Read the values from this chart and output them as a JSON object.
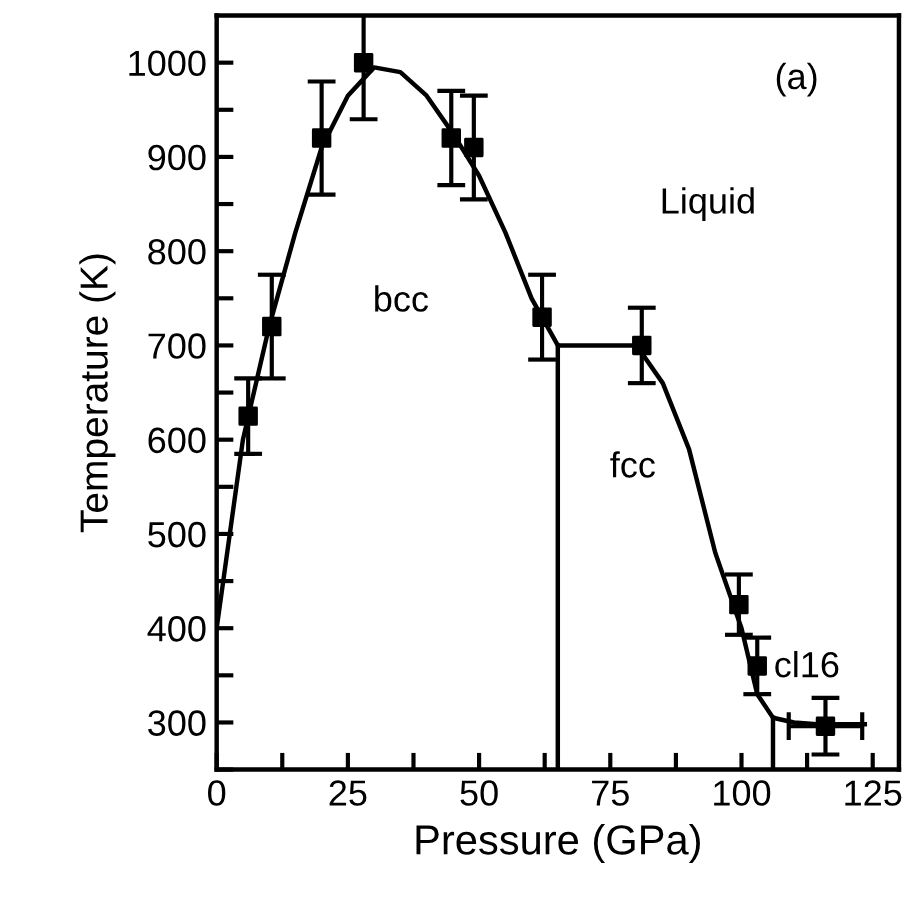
{
  "chart_data": {
    "type": "scatter",
    "xlabel": "Pressure (GPa)",
    "ylabel": "Temperature (K)",
    "xlim": [
      0,
      130
    ],
    "ylim": [
      250,
      1050
    ],
    "xticks": [
      0,
      {
        "value": 12.5,
        "label": null
      },
      25,
      {
        "value": 37.5,
        "label": null
      },
      50,
      {
        "value": 62.5,
        "label": null
      },
      75,
      {
        "value": 87.5,
        "label": null
      },
      100,
      {
        "value": 112.5,
        "label": null
      },
      125
    ],
    "yticks": [
      {
        "value": 250,
        "label": null
      },
      300,
      {
        "value": 350,
        "label": null
      },
      400,
      {
        "value": 450,
        "label": null
      },
      500,
      {
        "value": 550,
        "label": null
      },
      600,
      {
        "value": 650,
        "label": null
      },
      700,
      {
        "value": 750,
        "label": null
      },
      800,
      {
        "value": 850,
        "label": null
      },
      900,
      {
        "value": 950,
        "label": null
      },
      1000
    ],
    "grid": false,
    "legend": false,
    "series": [
      {
        "type": "line",
        "color": "#000000",
        "marker": "none",
        "line_style": "solid",
        "x": [
          0,
          5,
          10,
          15,
          20,
          25,
          30,
          35,
          40,
          45,
          50,
          55,
          60,
          65,
          80,
          85,
          90,
          95,
          100,
          103,
          106,
          110,
          115,
          123.5
        ],
        "values": [
          400,
          600,
          720,
          820,
          910,
          965,
          995,
          990,
          965,
          925,
          880,
          820,
          750,
          700,
          700,
          660,
          590,
          480,
          400,
          330,
          305,
          300,
          298,
          298
        ]
      },
      {
        "type": "line",
        "color": "#000000",
        "marker": "none",
        "line_style": "solid",
        "x": [
          65,
          65
        ],
        "values": [
          250,
          700
        ]
      },
      {
        "type": "line",
        "color": "#000000",
        "marker": "none",
        "line_style": "solid",
        "x": [
          106,
          106
        ],
        "values": [
          250,
          305
        ]
      },
      {
        "color": "#000000",
        "marker": "square",
        "x": [
          6,
          10.5,
          20,
          28,
          44.7,
          49,
          62,
          81,
          99.5,
          103,
          116
        ],
        "values": [
          625,
          720,
          920,
          1000,
          920,
          910,
          730,
          700,
          425,
          360,
          296
        ],
        "errors": [
          40,
          55,
          60,
          60,
          50,
          55,
          45,
          40,
          32,
          30,
          30
        ],
        "xerrors": [
          null,
          null,
          null,
          null,
          null,
          null,
          null,
          null,
          null,
          null,
          7
        ]
      }
    ],
    "annotations": [
      "bcc",
      "Liquid",
      "fcc",
      "cl16",
      "(a)"
    ]
  }
}
